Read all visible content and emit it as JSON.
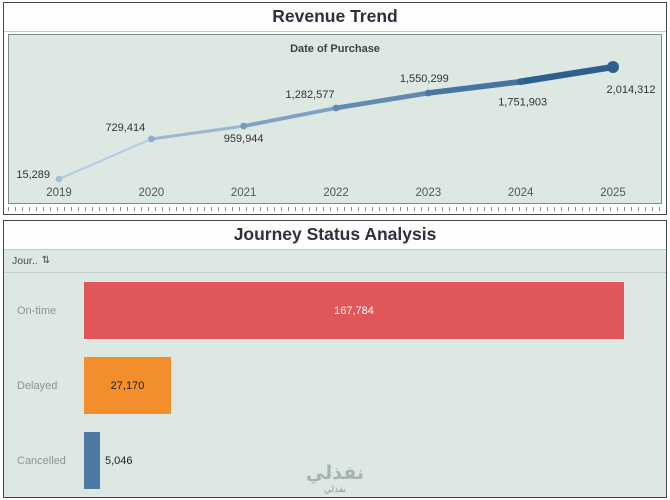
{
  "revenue": {
    "title": "Revenue Trend",
    "axis_title": "Date of Purchase"
  },
  "journey": {
    "title": "Journey Status Analysis",
    "field_label": "Jour..",
    "sort_icon": "⇅"
  },
  "watermark": {
    "text": "نفذلي",
    "subtext": "نفذلي"
  },
  "colors": {
    "panel_bg": "#dde8e3",
    "line_start": "#b5cde5",
    "line_end": "#2d5f8e",
    "title_text": "#30303c",
    "point_label_text": "#333333",
    "axis_text": "#555555",
    "category_text": "#8b9398"
  },
  "chart_data": [
    {
      "type": "line",
      "title": "Revenue Trend",
      "xlabel": "Date of Purchase",
      "ylabel": "",
      "x": [
        2019,
        2020,
        2021,
        2022,
        2023,
        2024,
        2025
      ],
      "values": [
        15289,
        729414,
        959944,
        1282577,
        1550299,
        1751903,
        2014312
      ],
      "labels": [
        "15,289",
        "729,414",
        "959,944",
        "1,282,577",
        "1,550,299",
        "1,751,903",
        "2,014,312"
      ],
      "ylim": [
        0,
        2100000
      ],
      "grid": false,
      "legend": "none",
      "style": "tapered gradient line, light blue to dark blue, markers on points"
    },
    {
      "type": "bar",
      "orientation": "horizontal",
      "title": "Journey Status Analysis",
      "categories": [
        "On-time",
        "Delayed",
        "Cancelled"
      ],
      "values": [
        167784,
        27170,
        5046
      ],
      "labels": [
        "167,784",
        "27,170",
        "5,046"
      ],
      "colors": [
        "#e15759",
        "#f28e2b",
        "#4e79a7"
      ],
      "xlim": [
        0,
        175000
      ],
      "grid": false,
      "legend": "none"
    }
  ]
}
